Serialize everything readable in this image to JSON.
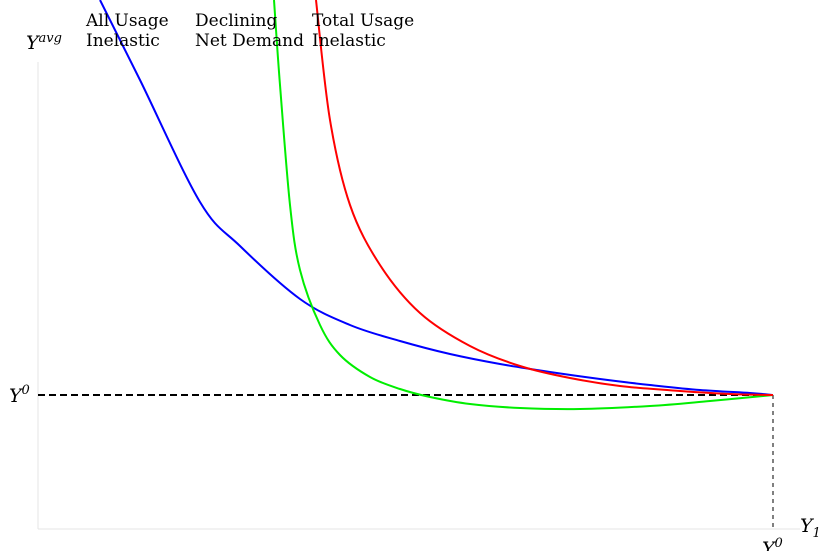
{
  "chart_data": {
    "type": "line",
    "title": "",
    "xlabel": "Y_1",
    "ylabel": "Y^avg",
    "grid": false,
    "legend": "none",
    "axis_labels": {
      "y_main": "Y",
      "y_sup": "avg",
      "x_main": "Y",
      "x_sub": "1"
    },
    "reference": {
      "y_ref_main": "Y",
      "y_ref_sup": "0",
      "x_ref_main": "Y",
      "x_ref_sup": "0"
    },
    "series": [
      {
        "line1": "All Usage",
        "line2": "Inelastic",
        "color": "#0000ff",
        "points": [
          [
            100,
            0
          ],
          [
            140,
            80
          ],
          [
            200,
            202
          ],
          [
            240,
            246
          ],
          [
            300,
            299
          ],
          [
            350,
            325
          ],
          [
            400,
            341
          ],
          [
            450,
            354
          ],
          [
            500,
            364
          ],
          [
            550,
            372
          ],
          [
            600,
            379
          ],
          [
            650,
            385
          ],
          [
            700,
            390
          ],
          [
            750,
            393
          ],
          [
            773,
            395
          ]
        ]
      },
      {
        "line1": "Declining",
        "line2": "Net Demand",
        "color": "#00ee00",
        "points": [
          [
            274,
            0
          ],
          [
            280,
            85
          ],
          [
            290,
            205
          ],
          [
            300,
            270
          ],
          [
            320,
            325
          ],
          [
            340,
            355
          ],
          [
            370,
            377
          ],
          [
            400,
            389
          ],
          [
            430,
            397
          ],
          [
            470,
            404
          ],
          [
            520,
            408
          ],
          [
            580,
            409
          ],
          [
            650,
            406
          ],
          [
            710,
            401
          ],
          [
            773,
            395
          ]
        ]
      },
      {
        "line1": "Total Usage",
        "line2": "Inelastic",
        "color": "#ff0000",
        "points": [
          [
            316,
            0
          ],
          [
            330,
            120
          ],
          [
            350,
            205
          ],
          [
            380,
            265
          ],
          [
            420,
            313
          ],
          [
            470,
            346
          ],
          [
            520,
            366
          ],
          [
            570,
            378
          ],
          [
            620,
            386
          ],
          [
            680,
            391
          ],
          [
            730,
            394
          ],
          [
            773,
            395
          ]
        ]
      }
    ]
  }
}
